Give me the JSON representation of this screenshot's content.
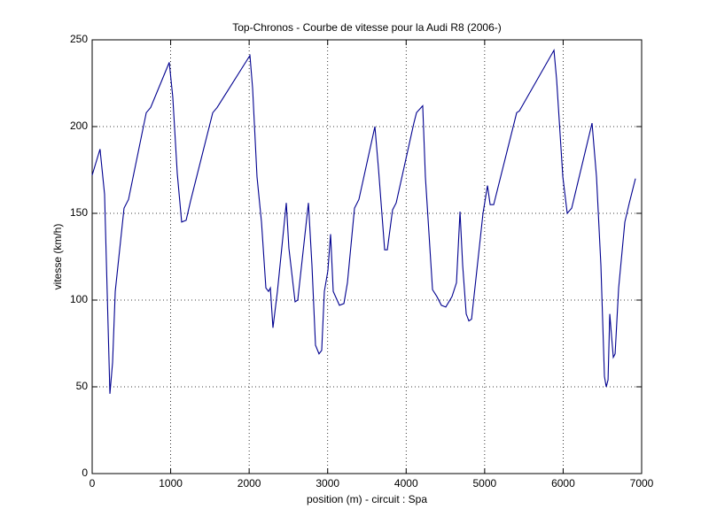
{
  "chart_data": {
    "type": "line",
    "title": "Top-Chronos - Courbe de vitesse pour la Audi R8 (2006-)",
    "xlabel": "position (m) - circuit : Spa",
    "ylabel": "vitesse (km/h)",
    "x": [
      0,
      100,
      158,
      226,
      260,
      294,
      406,
      463,
      689,
      745,
      982,
      1027,
      1084,
      1140,
      1197,
      1253,
      1536,
      1592,
      2010,
      2044,
      2100,
      2157,
      2213,
      2247,
      2270,
      2303,
      2360,
      2473,
      2506,
      2585,
      2619,
      2755,
      2800,
      2845,
      2890,
      2924,
      2958,
      3003,
      3037,
      3071,
      3150,
      3207,
      3252,
      3342,
      3398,
      3602,
      3647,
      3726,
      3760,
      3827,
      3873,
      4098,
      4132,
      4211,
      4245,
      4336,
      4392,
      4449,
      4505,
      4584,
      4641,
      4686,
      4720,
      4765,
      4799,
      4833,
      4979,
      5036,
      5070,
      5115,
      5408,
      5442,
      5883,
      5917,
      5996,
      6052,
      6109,
      6368,
      6425,
      6481,
      6526,
      6549,
      6572,
      6594,
      6617,
      6639,
      6662,
      6707,
      6786,
      6843,
      6921
    ],
    "values": [
      172,
      187,
      161,
      46,
      64,
      105,
      153,
      158,
      208,
      211,
      237,
      217,
      173,
      145,
      146,
      157,
      208,
      211,
      241,
      222,
      171,
      145,
      107,
      105,
      107,
      84,
      105,
      156,
      130,
      99,
      100,
      156,
      120,
      74,
      69,
      71,
      105,
      117,
      138,
      105,
      97,
      98,
      110,
      153,
      158,
      200,
      176,
      129,
      129,
      152,
      156,
      202,
      208,
      212,
      171,
      106,
      102,
      97,
      96,
      102,
      110,
      151,
      120,
      92,
      88,
      89,
      150,
      166,
      155,
      155,
      208,
      209,
      244,
      227,
      171,
      150,
      153,
      202,
      171,
      120,
      56,
      50,
      54,
      92,
      79,
      67,
      69,
      107,
      145,
      156,
      170
    ],
    "color": "#00008f",
    "xlim": [
      0,
      7000
    ],
    "xticks": [
      0,
      1000,
      2000,
      3000,
      4000,
      5000,
      6000,
      7000
    ],
    "ylim": [
      0,
      250
    ],
    "yticks": [
      0,
      50,
      100,
      150,
      200,
      250
    ],
    "grid": true
  }
}
